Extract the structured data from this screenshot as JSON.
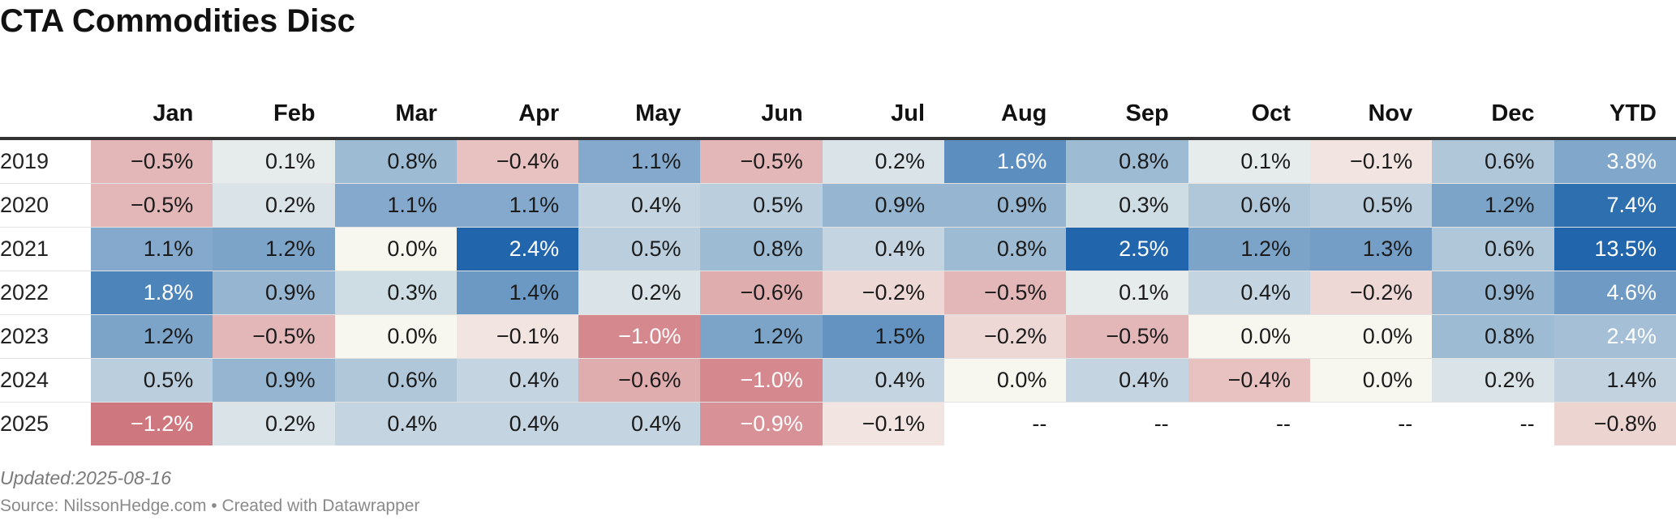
{
  "title": "CTA Commodities Disc",
  "footer": {
    "updated": "Updated:2025-08-16",
    "source": "Source: NilssonHedge.com • Created with Datawrapper"
  },
  "colors": {
    "negative_strong": "#b2182b",
    "neutral": "#f7f7f0",
    "positive_strong": "#2166ac"
  },
  "chart_data": {
    "type": "heatmap",
    "columns": [
      "Jan",
      "Feb",
      "Mar",
      "Apr",
      "May",
      "Jun",
      "Jul",
      "Aug",
      "Sep",
      "Oct",
      "Nov",
      "Dec",
      "YTD"
    ],
    "rows": [
      {
        "year": "2019",
        "cells": [
          "−0.5%",
          "0.1%",
          "0.8%",
          "−0.4%",
          "1.1%",
          "−0.5%",
          "0.2%",
          "1.6%",
          "0.8%",
          "0.1%",
          "−0.1%",
          "0.6%",
          "3.8%"
        ]
      },
      {
        "year": "2020",
        "cells": [
          "−0.5%",
          "0.2%",
          "1.1%",
          "1.1%",
          "0.4%",
          "0.5%",
          "0.9%",
          "0.9%",
          "0.3%",
          "0.6%",
          "0.5%",
          "1.2%",
          "7.4%"
        ]
      },
      {
        "year": "2021",
        "cells": [
          "1.1%",
          "1.2%",
          "0.0%",
          "2.4%",
          "0.5%",
          "0.8%",
          "0.4%",
          "0.8%",
          "2.5%",
          "1.2%",
          "1.3%",
          "0.6%",
          "13.5%"
        ]
      },
      {
        "year": "2022",
        "cells": [
          "1.8%",
          "0.9%",
          "0.3%",
          "1.4%",
          "0.2%",
          "−0.6%",
          "−0.2%",
          "−0.5%",
          "0.1%",
          "0.4%",
          "−0.2%",
          "0.9%",
          "4.6%"
        ]
      },
      {
        "year": "2023",
        "cells": [
          "1.2%",
          "−0.5%",
          "0.0%",
          "−0.1%",
          "−1.0%",
          "1.2%",
          "1.5%",
          "−0.2%",
          "−0.5%",
          "0.0%",
          "0.0%",
          "0.8%",
          "2.4%"
        ]
      },
      {
        "year": "2024",
        "cells": [
          "0.5%",
          "0.9%",
          "0.6%",
          "0.4%",
          "−0.6%",
          "−1.0%",
          "0.4%",
          "0.0%",
          "0.4%",
          "−0.4%",
          "0.0%",
          "0.2%",
          "1.4%"
        ]
      },
      {
        "year": "2025",
        "cells": [
          "−1.2%",
          "0.2%",
          "0.4%",
          "0.4%",
          "0.4%",
          "−0.9%",
          "−0.1%",
          "--",
          "--",
          "--",
          "--",
          "--",
          "−0.8%"
        ]
      }
    ]
  }
}
